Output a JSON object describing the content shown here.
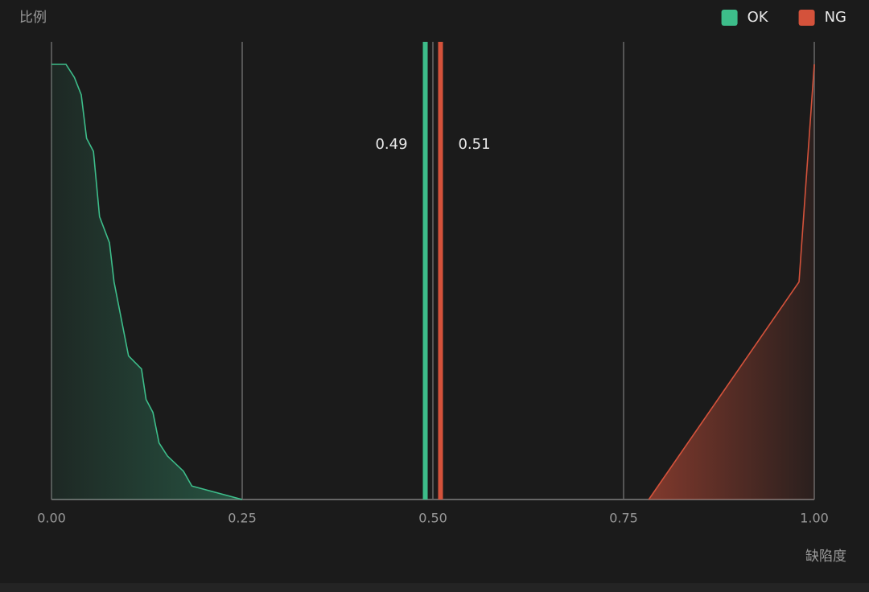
{
  "chart_data": {
    "type": "area",
    "y_label": "比例",
    "x_label": "缺陷度",
    "legend": "top-right",
    "grid": true,
    "xlim": [
      0,
      1
    ],
    "ylim": [
      0,
      1
    ],
    "xticks": [
      {
        "value": 0,
        "label": "0.00"
      },
      0.25,
      {
        "value": 0.5,
        "label": "0.50"
      },
      0.75,
      {
        "value": 1,
        "label": "1.00"
      }
    ],
    "series": [
      {
        "name": "OK",
        "color": "#3dbd8a",
        "x": [
          0,
          0.019,
          0.03,
          0.039,
          0.046,
          0.055,
          0.063,
          0.076,
          0.082,
          0.101,
          0.118,
          0.124,
          0.133,
          0.141,
          0.152,
          0.173,
          0.184,
          0.25
        ],
        "values": [
          1,
          1,
          0.97,
          0.93,
          0.83,
          0.8,
          0.65,
          0.59,
          0.5,
          0.33,
          0.3,
          0.23,
          0.2,
          0.13,
          0.1,
          0.065,
          0.031,
          0
        ]
      },
      {
        "name": "NG",
        "color": "#d4523b",
        "x": [
          0.783,
          0.98,
          1
        ],
        "values": [
          0,
          0.5,
          1
        ]
      }
    ],
    "markers": [
      {
        "value": 0.49,
        "color": "#3dbd8a"
      },
      {
        "value": 0.51,
        "color": "#d4523b"
      }
    ]
  }
}
